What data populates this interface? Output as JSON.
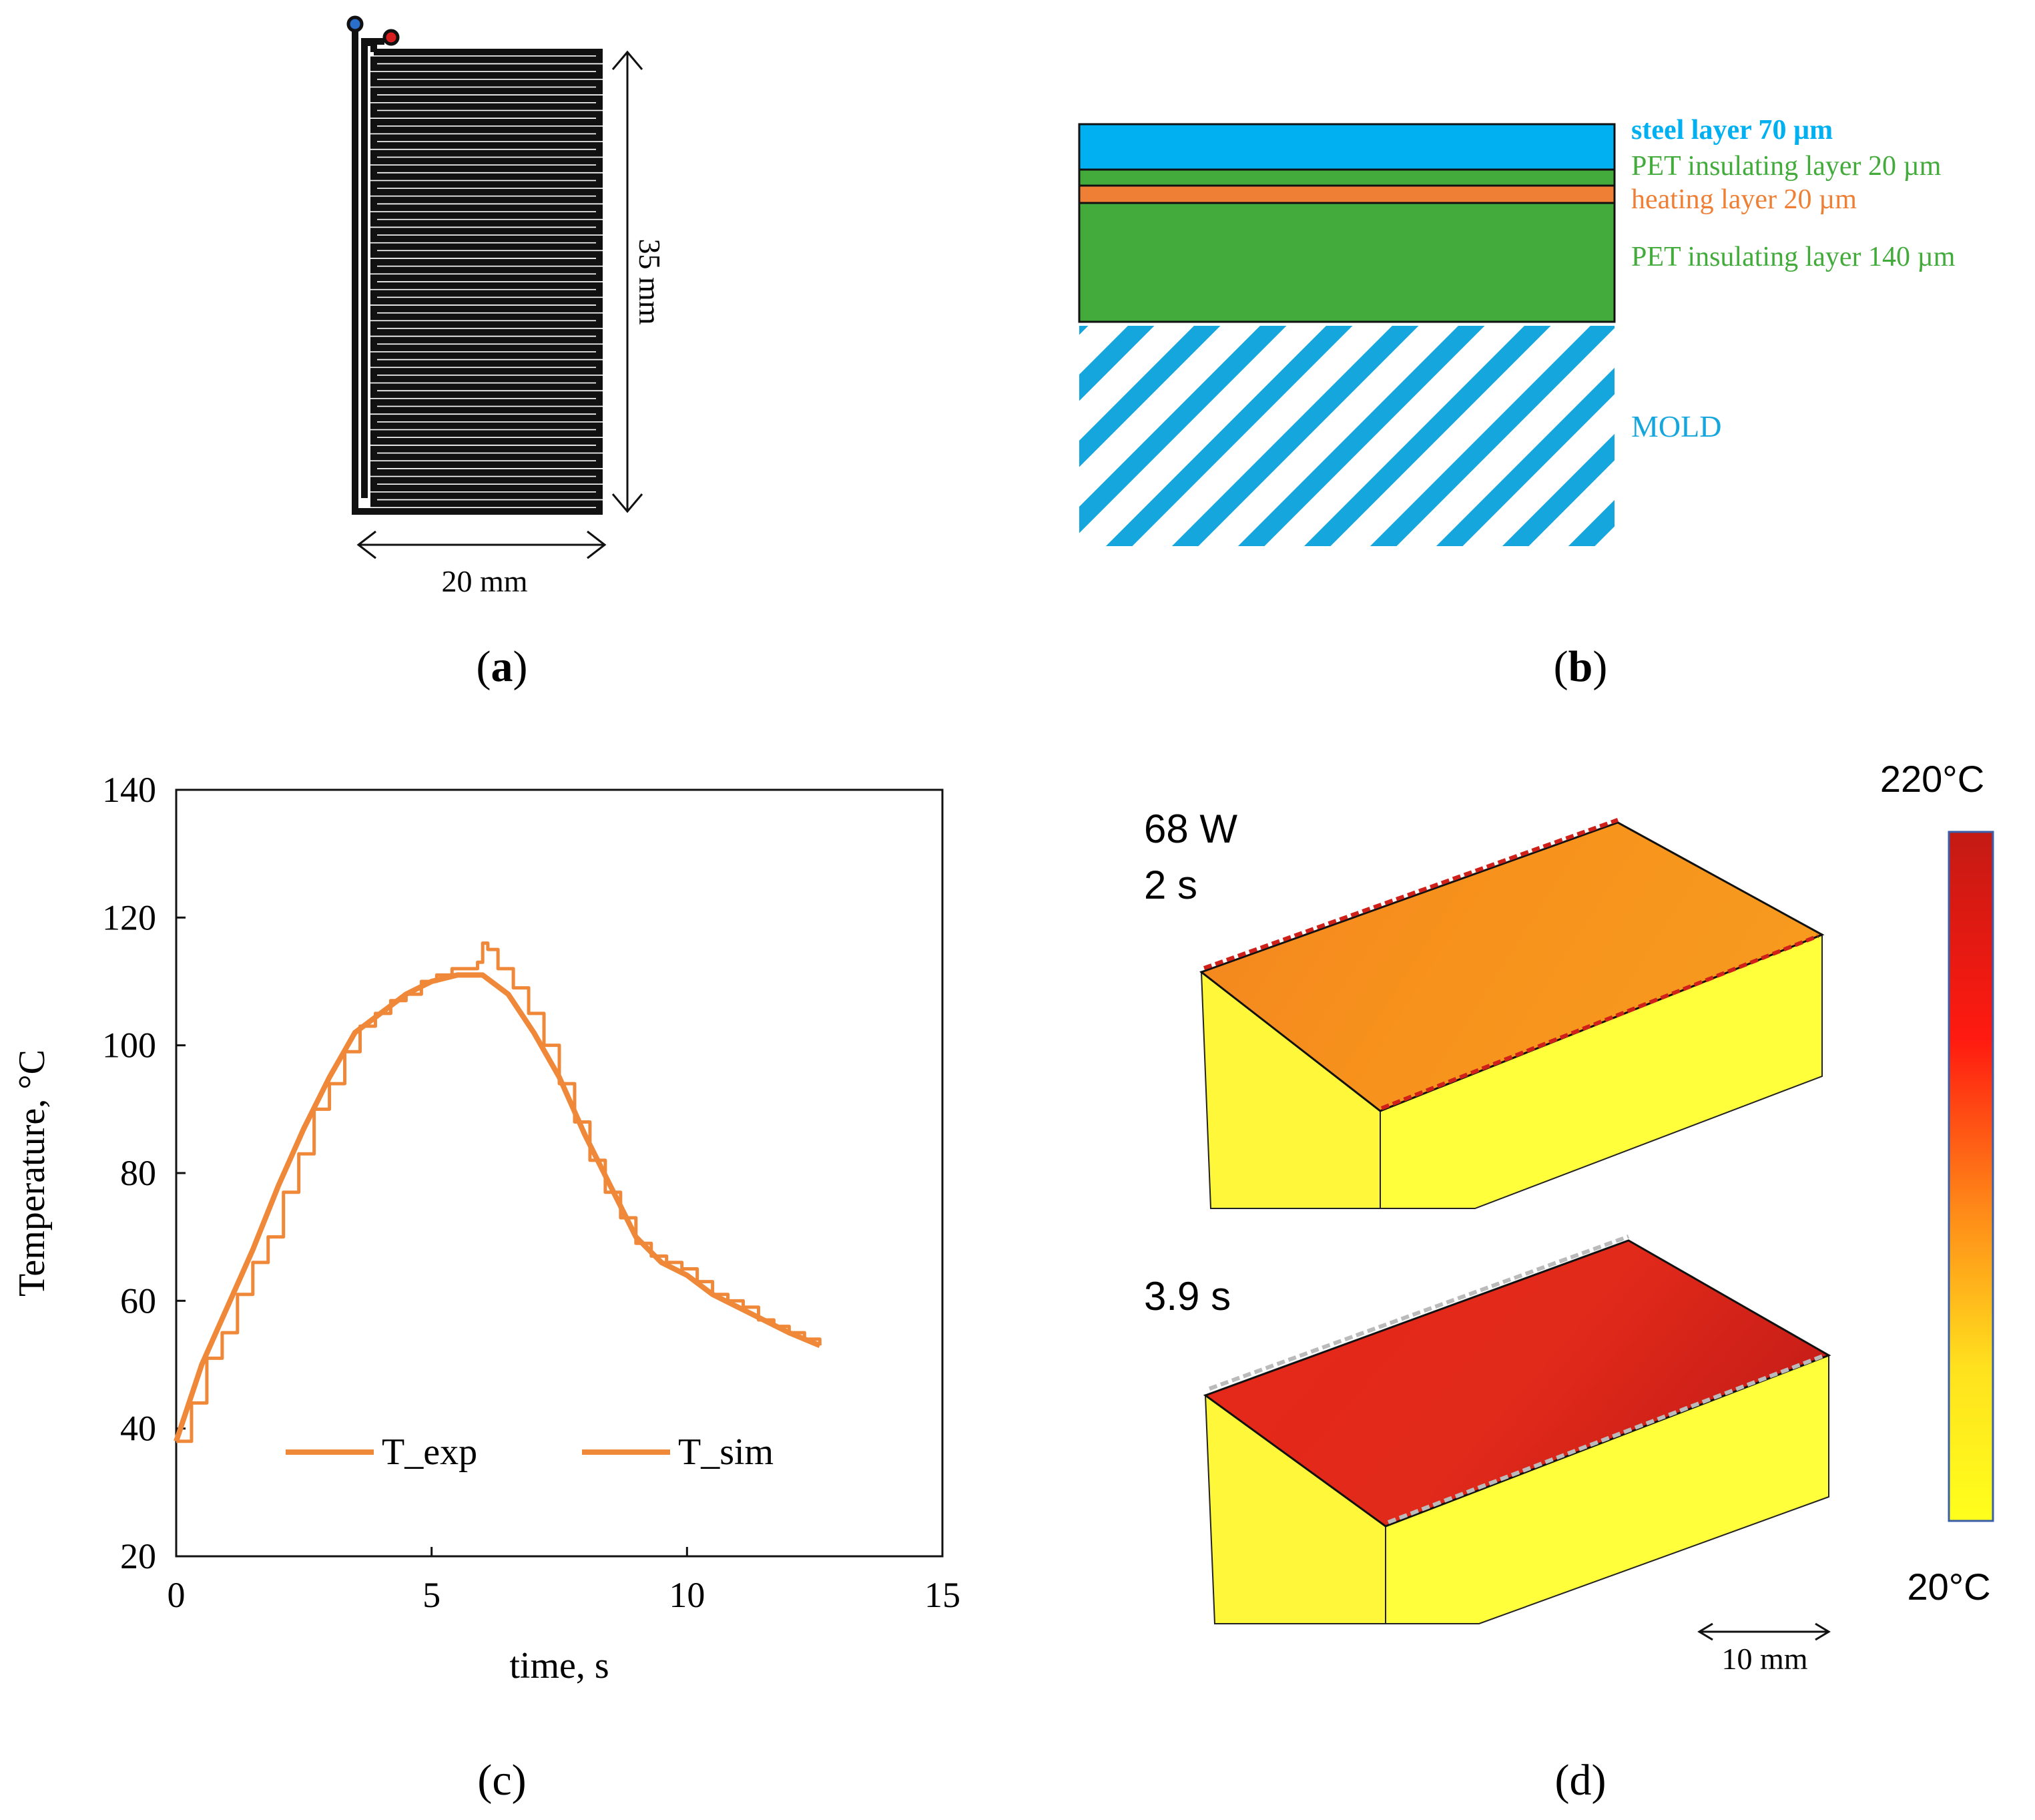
{
  "panel_a": {
    "width_label": "20 mm",
    "height_label": "35 mm",
    "caption_open": "(",
    "caption_letter": "a",
    "caption_close": ")",
    "colors": {
      "trace": "#111111",
      "terminal_1": "#2a6fc9",
      "terminal_2": "#d81e1e"
    }
  },
  "panel_b": {
    "layers": [
      {
        "label": "steel layer 70 µm",
        "color": "#00b0f0"
      },
      {
        "label": "PET insulating layer 20 µm",
        "color": "#43ab3c"
      },
      {
        "label": "heating layer 20 µm",
        "color": "#ef7f35"
      },
      {
        "label": "PET insulating layer 140 µm",
        "color": "#43ab3c"
      },
      {
        "label": "MOLD",
        "color": "#15a6dd"
      }
    ],
    "caption_open": "(",
    "caption_letter": "b",
    "caption_close": ")"
  },
  "panel_c": {
    "caption": "(c)",
    "legend_note": "Both curves plotted in the same orange color"
  },
  "chart_data": {
    "type": "line",
    "title": "",
    "xlabel": "time, s",
    "ylabel": "Temperature, °C",
    "xlim": [
      0,
      15
    ],
    "ylim": [
      20,
      140
    ],
    "xticks": [
      0,
      5,
      10,
      15
    ],
    "yticks": [
      20,
      40,
      60,
      80,
      100,
      120,
      140
    ],
    "grid": false,
    "legend_position": "bottom-left",
    "series": [
      {
        "name": "T_exp",
        "color": "#f0883a",
        "style": "stepped",
        "x": [
          0,
          0.3,
          0.6,
          0.9,
          1.2,
          1.5,
          1.8,
          2.1,
          2.4,
          2.7,
          3.0,
          3.3,
          3.6,
          3.9,
          4.2,
          4.5,
          4.8,
          5.1,
          5.4,
          5.7,
          5.9,
          6.0,
          6.1,
          6.3,
          6.6,
          6.9,
          7.2,
          7.5,
          7.8,
          8.1,
          8.4,
          8.7,
          9.0,
          9.3,
          9.6,
          9.9,
          10.2,
          10.5,
          10.8,
          11.1,
          11.4,
          11.7,
          12.0,
          12.3,
          12.6
        ],
        "y": [
          38,
          44,
          51,
          55,
          61,
          66,
          70,
          77,
          83,
          90,
          94,
          99,
          103,
          105,
          107,
          108,
          110,
          111,
          112,
          112,
          113,
          116,
          115,
          112,
          109,
          105,
          100,
          94,
          88,
          82,
          77,
          73,
          69,
          67,
          66,
          65,
          63,
          61,
          60,
          59,
          57,
          56,
          55,
          54,
          53
        ]
      },
      {
        "name": "T_sim",
        "color": "#f0883a",
        "style": "smooth",
        "x": [
          0,
          0.5,
          1.0,
          1.5,
          2.0,
          2.5,
          3.0,
          3.5,
          4.0,
          4.5,
          5.0,
          5.5,
          6.0,
          6.5,
          7.0,
          7.5,
          8.0,
          8.5,
          9.0,
          9.5,
          10.0,
          10.5,
          11.0,
          11.5,
          12.0,
          12.6
        ],
        "y": [
          38,
          50,
          59,
          68,
          78,
          87,
          95,
          102,
          105,
          108,
          110,
          111,
          111,
          108,
          102,
          95,
          86,
          78,
          70,
          66,
          64,
          61,
          59,
          57,
          55,
          53
        ]
      }
    ]
  },
  "panel_d": {
    "label_power": "68 W",
    "label_time_1": "2 s",
    "label_time_2": "3.9 s",
    "colorbar_max": "220°C",
    "colorbar_min": "20°C",
    "colorbar_colors": [
      "#c41a14",
      "#ff1a10",
      "#ff8a18",
      "#ffe21e",
      "#ffff1c"
    ],
    "scale_label": "10 mm",
    "caption": "(d)"
  }
}
